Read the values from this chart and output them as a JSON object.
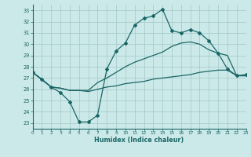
{
  "xlabel": "Humidex (Indice chaleur)",
  "xlim": [
    0,
    23
  ],
  "ylim": [
    22.5,
    33.5
  ],
  "yticks": [
    23,
    24,
    25,
    26,
    27,
    28,
    29,
    30,
    31,
    32,
    33
  ],
  "xticks": [
    0,
    1,
    2,
    3,
    4,
    5,
    6,
    7,
    8,
    9,
    10,
    11,
    12,
    13,
    14,
    15,
    16,
    17,
    18,
    19,
    20,
    21,
    22,
    23
  ],
  "bg_color": "#cce9e9",
  "line_color": "#1a6666",
  "grid_color": "#b8d8d8",
  "line1_x": [
    0,
    1,
    2,
    3,
    4,
    5,
    6,
    7,
    8,
    9,
    10,
    11,
    12,
    13,
    14,
    15,
    16,
    17,
    18,
    19,
    20,
    21,
    22,
    23
  ],
  "line1_y": [
    27.5,
    26.9,
    26.2,
    25.7,
    24.9,
    23.1,
    23.1,
    23.7,
    27.8,
    29.4,
    30.1,
    31.7,
    32.3,
    32.5,
    33.1,
    31.2,
    31.0,
    31.3,
    31.0,
    30.3,
    29.2,
    27.8,
    27.2,
    27.3
  ],
  "line2_x": [
    0,
    2,
    3,
    4,
    5,
    6,
    7,
    8,
    9,
    10,
    11,
    12,
    13,
    14,
    15,
    16,
    17,
    18,
    19,
    20,
    21,
    22,
    23
  ],
  "line2_y": [
    27.5,
    26.2,
    26.1,
    25.9,
    25.9,
    25.9,
    26.6,
    27.0,
    27.5,
    28.0,
    28.4,
    28.7,
    29.0,
    29.3,
    29.8,
    30.1,
    30.2,
    30.0,
    29.5,
    29.2,
    29.0,
    27.2,
    27.2
  ],
  "line3_x": [
    0,
    2,
    3,
    4,
    5,
    6,
    7,
    8,
    9,
    10,
    11,
    12,
    13,
    14,
    15,
    16,
    17,
    18,
    19,
    20,
    21,
    22,
    23
  ],
  "line3_y": [
    27.5,
    26.2,
    26.1,
    25.9,
    25.9,
    25.8,
    26.0,
    26.2,
    26.3,
    26.5,
    26.6,
    26.7,
    26.9,
    27.0,
    27.1,
    27.2,
    27.3,
    27.5,
    27.6,
    27.7,
    27.7,
    27.2,
    27.2
  ]
}
